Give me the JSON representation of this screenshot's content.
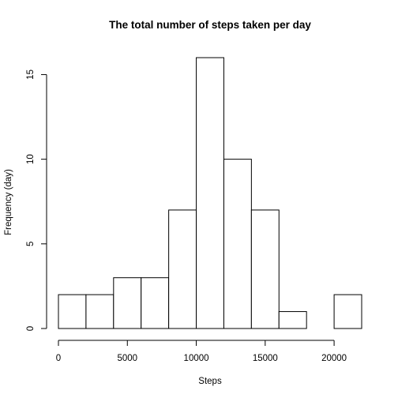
{
  "chart_data": {
    "type": "bar",
    "subtype": "histogram",
    "title": "The total number of steps taken per day",
    "xlabel": "Steps",
    "ylabel": "Frequency (day)",
    "bins": [
      {
        "start": 0,
        "end": 2000,
        "count": 2
      },
      {
        "start": 2000,
        "end": 4000,
        "count": 2
      },
      {
        "start": 4000,
        "end": 6000,
        "count": 3
      },
      {
        "start": 6000,
        "end": 8000,
        "count": 3
      },
      {
        "start": 8000,
        "end": 10000,
        "count": 7
      },
      {
        "start": 10000,
        "end": 12000,
        "count": 16
      },
      {
        "start": 12000,
        "end": 14000,
        "count": 10
      },
      {
        "start": 14000,
        "end": 16000,
        "count": 7
      },
      {
        "start": 16000,
        "end": 18000,
        "count": 1
      },
      {
        "start": 18000,
        "end": 20000,
        "count": 0
      },
      {
        "start": 20000,
        "end": 22000,
        "count": 2
      }
    ],
    "xlim": [
      0,
      22000
    ],
    "ylim": [
      0,
      16
    ],
    "x_ticks": [
      0,
      5000,
      10000,
      15000,
      20000
    ],
    "y_ticks": [
      0,
      5,
      10,
      15
    ],
    "grid": false,
    "legend": "none",
    "bar_fill": "#ffffff",
    "bar_stroke": "#000000"
  }
}
